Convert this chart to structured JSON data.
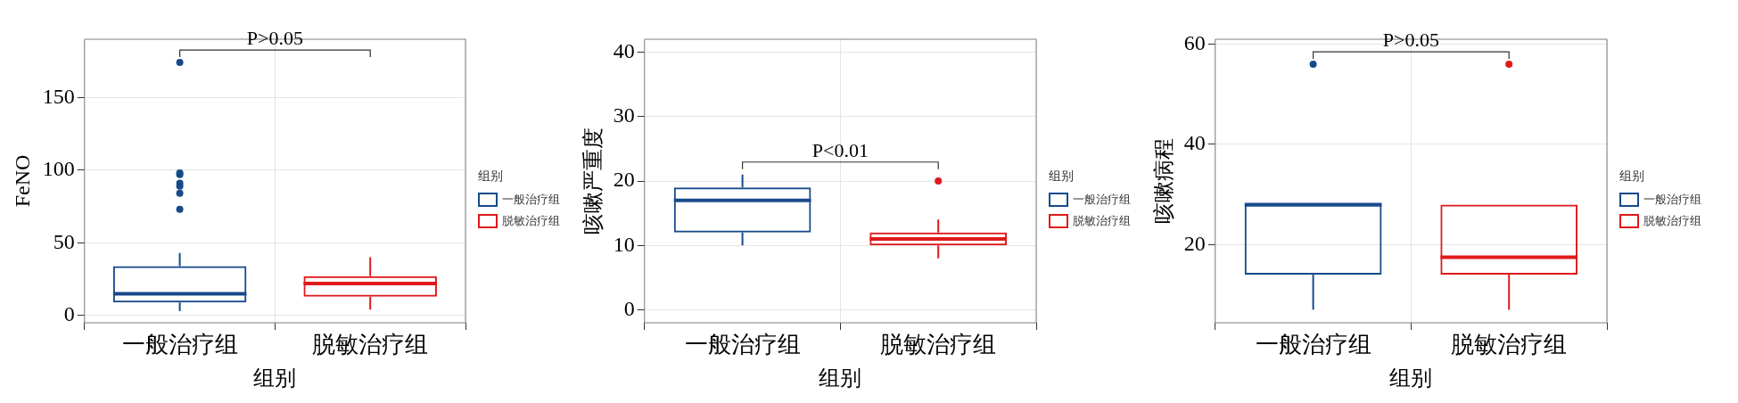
{
  "chart_data": [
    {
      "type": "box",
      "categories": [
        "一般治疗组",
        "脱敏治疗组"
      ],
      "series": [
        {
          "name": "一般治疗组",
          "color": "#174a8b",
          "boxes": [
            {
              "low": 3,
              "q1": 9,
              "median": 15,
              "q3": 34,
              "high": 43,
              "outliers": [
                174,
                98,
                97,
                91,
                89,
                84,
                73
              ]
            },
            null
          ]
        },
        {
          "name": "脱敏治疗组",
          "color": "#e0191c",
          "boxes": [
            null,
            {
              "low": 4,
              "q1": 13,
              "median": 22,
              "q3": 27,
              "high": 40
            }
          ]
        }
      ],
      "ylim": [
        -5,
        190
      ],
      "yticks": [
        0,
        50,
        100,
        150
      ],
      "xlabel": "组别",
      "ylabel": "FeNO",
      "legend_title": "组别",
      "legend": "right",
      "grid": true,
      "annotations": [
        "P>0.05"
      ]
    },
    {
      "type": "box",
      "categories": [
        "一般治疗组",
        "脱敏治疗组"
      ],
      "series": [
        {
          "name": "一般治疗组",
          "color": "#174a8b",
          "boxes": [
            {
              "low": 10,
              "q1": 12,
              "median": 17,
              "q3": 19,
              "high": 21
            },
            null
          ]
        },
        {
          "name": "脱敏治疗组",
          "color": "#e0191c",
          "boxes": [
            null,
            {
              "low": 8,
              "q1": 10,
              "median": 11,
              "q3": 12,
              "high": 14,
              "outliers": [
                20
              ]
            }
          ]
        }
      ],
      "ylim": [
        -2,
        42
      ],
      "yticks": [
        0,
        10,
        20,
        30,
        40
      ],
      "xlabel": "组别",
      "ylabel": "咳嗽严重度",
      "legend_title": "组别",
      "legend": "right",
      "grid": true,
      "annotations": [
        "P<0.01"
      ]
    },
    {
      "type": "box",
      "categories": [
        "一般治疗组",
        "脱敏治疗组"
      ],
      "series": [
        {
          "name": "一般治疗组",
          "color": "#174a8b",
          "boxes": [
            {
              "low": 7,
              "q1": 14,
              "median": 28,
              "q3": 28,
              "high": 28,
              "outliers": [
                56
              ]
            },
            null
          ]
        },
        {
          "name": "脱敏治疗组",
          "color": "#e0191c",
          "boxes": [
            null,
            {
              "low": 7,
              "q1": 14,
              "median": 17.5,
              "q3": 28,
              "high": 28,
              "outliers": [
                56
              ]
            }
          ]
        }
      ],
      "ylim": [
        4.4,
        61
      ],
      "yticks": [
        20,
        40,
        60
      ],
      "xlabel": "组别",
      "ylabel": "咳嗽病程",
      "legend_title": "组别",
      "legend": "right",
      "grid": true,
      "annotations": [
        "P>0.05"
      ]
    }
  ]
}
